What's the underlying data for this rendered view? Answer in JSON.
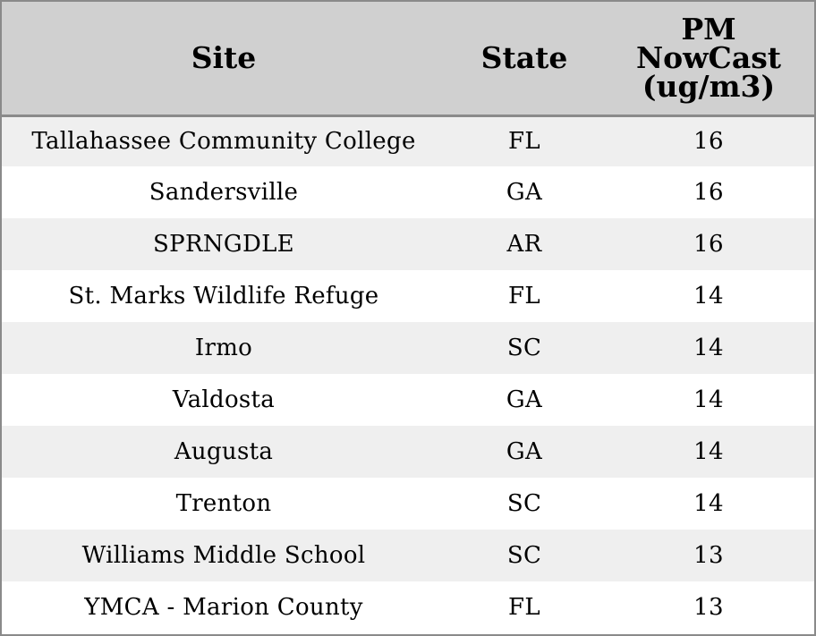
{
  "chart_data": {
    "type": "table",
    "columns": [
      "Site",
      "State",
      "PM NowCast (ug/m3)"
    ],
    "header": {
      "site": "Site",
      "state": "State",
      "pm_line1": "PM",
      "pm_line2": "NowCast",
      "pm_line3": "(ug/m3)"
    },
    "rows": [
      {
        "site": "Tallahassee Community College",
        "state": "FL",
        "pm": 16
      },
      {
        "site": "Sandersville",
        "state": "GA",
        "pm": 16
      },
      {
        "site": "SPRNGDLE",
        "state": "AR",
        "pm": 16
      },
      {
        "site": "St. Marks Wildlife Refuge",
        "state": "FL",
        "pm": 14
      },
      {
        "site": "Irmo",
        "state": "SC",
        "pm": 14
      },
      {
        "site": "Valdosta",
        "state": "GA",
        "pm": 14
      },
      {
        "site": "Augusta",
        "state": "GA",
        "pm": 14
      },
      {
        "site": "Trenton",
        "state": "SC",
        "pm": 14
      },
      {
        "site": "Williams Middle School",
        "state": "SC",
        "pm": 13
      },
      {
        "site": "YMCA - Marion County",
        "state": "FL",
        "pm": 13
      }
    ]
  }
}
